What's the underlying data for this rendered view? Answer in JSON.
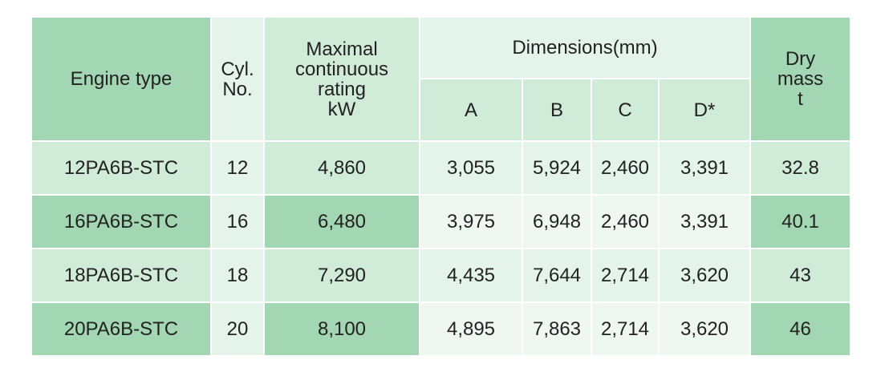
{
  "table": {
    "header": {
      "engine_type": "Engine type",
      "cyl": [
        "Cyl.",
        "No."
      ],
      "rating": [
        "Maximal",
        "continuous",
        "rating",
        "kW"
      ],
      "dimensions": "Dimensions(mm)",
      "dim_cols": [
        "A",
        "B",
        "C",
        "D*"
      ],
      "mass": [
        "Dry",
        "mass",
        "t"
      ]
    },
    "rows": [
      [
        "12PA6B-STC",
        "12",
        "4,860",
        "3,055",
        "5,924",
        "2,460",
        "3,391",
        "32.8"
      ],
      [
        "16PA6B-STC",
        "16",
        "6,480",
        "3,975",
        "6,948",
        "2,460",
        "3,391",
        "40.1"
      ],
      [
        "18PA6B-STC",
        "18",
        "7,290",
        "4,435",
        "7,644",
        "2,714",
        "3,620",
        "43"
      ],
      [
        "20PA6B-STC",
        "20",
        "8,100",
        "4,895",
        "7,863",
        "2,714",
        "3,620",
        "46"
      ]
    ]
  }
}
